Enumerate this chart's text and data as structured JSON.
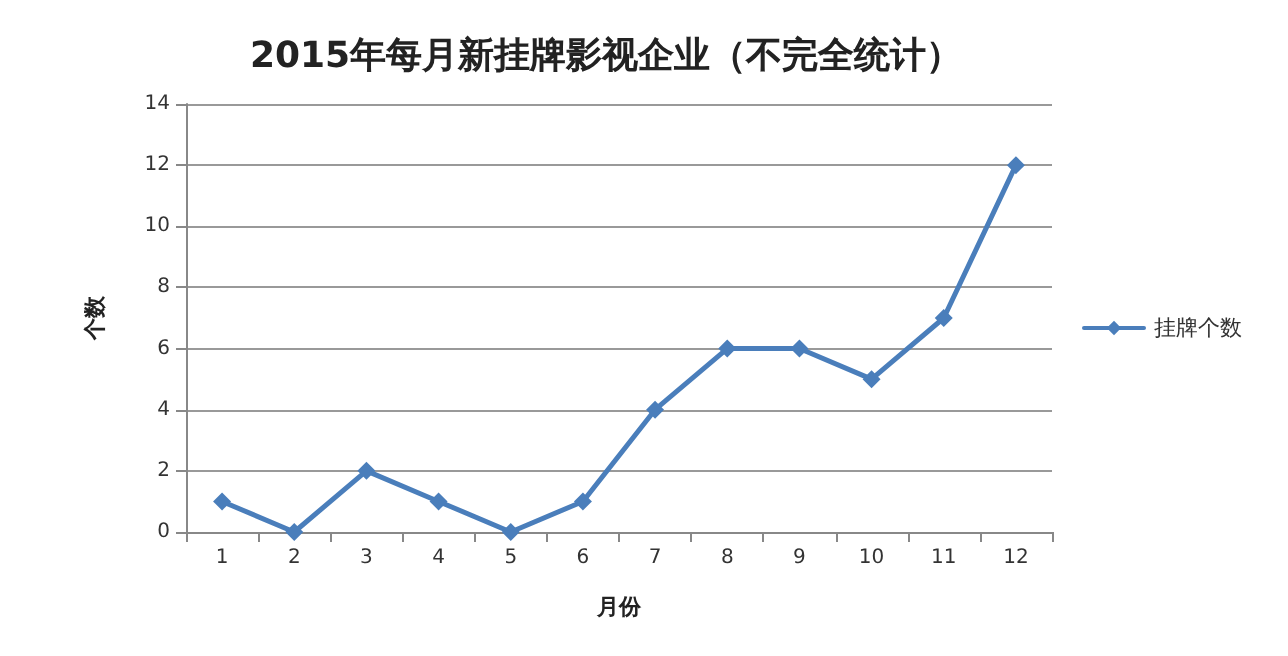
{
  "chart_data": {
    "type": "line",
    "title": "2015年每月新挂牌影视企业（不完全统计）",
    "xlabel": "月份",
    "ylabel": "个数",
    "categories": [
      "1",
      "2",
      "3",
      "4",
      "5",
      "6",
      "7",
      "8",
      "9",
      "10",
      "11",
      "12"
    ],
    "series": [
      {
        "name": "挂牌个数",
        "color": "#4a7ebb",
        "values": [
          1,
          0,
          2,
          1,
          0,
          1,
          4,
          6,
          6,
          5,
          7,
          12
        ]
      }
    ],
    "ylim": [
      0,
      14
    ],
    "yticks": [
      0,
      2,
      4,
      6,
      8,
      10,
      12,
      14
    ],
    "grid": "y",
    "legend": "right",
    "marker": "diamond",
    "line_style": "solid"
  }
}
